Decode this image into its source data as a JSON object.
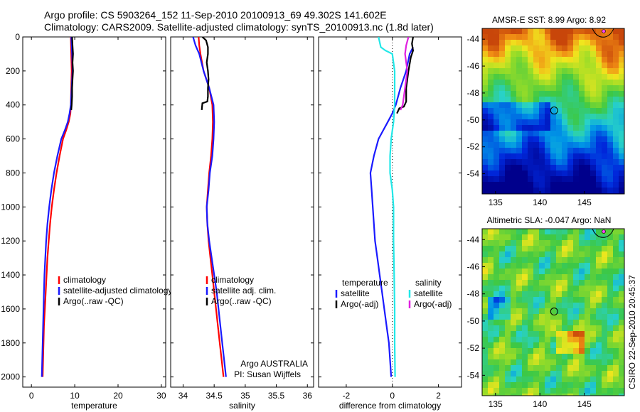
{
  "header": {
    "line1": "Argo profile: CS 5903264_152 11-Sep-2010 20100913_69 49.302S 141.602E",
    "line2": "Climatology: CARS2009. Satellite-adjusted climatology: synTS_20100913.nc (1.8d later)"
  },
  "footer_stamp": "CSIRO 22-Sep-2010 20:45:37",
  "colors": {
    "climatology": "#ff0000",
    "satellite": "#1a1aff",
    "argo": "#000000",
    "sat_salinity": "#22e8e8",
    "argo_salinity_adj": "#e020e0"
  },
  "chart_data": [
    {
      "type": "line",
      "xlabel": "temperature",
      "ylabel": "",
      "xlim": [
        -2,
        31
      ],
      "ylim": [
        2060,
        0
      ],
      "xticks": [
        0,
        10,
        20,
        30
      ],
      "yticks": [
        0,
        200,
        400,
        600,
        800,
        1000,
        1200,
        1400,
        1600,
        1800,
        2000
      ],
      "legend": [
        "climatology",
        "satellite-adjusted climatology",
        "Argo(..raw -QC)"
      ],
      "series": [
        {
          "name": "climatology",
          "color": "#ff0000",
          "points": [
            [
              9.1,
              0
            ],
            [
              9.2,
              100
            ],
            [
              9.3,
              200
            ],
            [
              9.2,
              300
            ],
            [
              9.1,
              400
            ],
            [
              9.0,
              450
            ],
            [
              8.6,
              500
            ],
            [
              8.0,
              550
            ],
            [
              7.3,
              600
            ],
            [
              6.5,
              700
            ],
            [
              5.8,
              800
            ],
            [
              5.2,
              900
            ],
            [
              4.7,
              1000
            ],
            [
              4.3,
              1100
            ],
            [
              4.0,
              1200
            ],
            [
              3.7,
              1300
            ],
            [
              3.5,
              1400
            ],
            [
              3.3,
              1500
            ],
            [
              3.1,
              1600
            ],
            [
              2.9,
              1700
            ],
            [
              2.8,
              1800
            ],
            [
              2.7,
              1900
            ],
            [
              2.6,
              2000
            ]
          ]
        },
        {
          "name": "satellite-adjusted climatology",
          "color": "#1a1aff",
          "points": [
            [
              9.2,
              0
            ],
            [
              9.4,
              100
            ],
            [
              9.5,
              200
            ],
            [
              9.3,
              300
            ],
            [
              9.1,
              400
            ],
            [
              8.8,
              450
            ],
            [
              8.4,
              500
            ],
            [
              7.7,
              550
            ],
            [
              6.9,
              600
            ],
            [
              6.0,
              700
            ],
            [
              5.2,
              800
            ],
            [
              4.6,
              900
            ],
            [
              4.1,
              1000
            ],
            [
              3.7,
              1100
            ],
            [
              3.4,
              1200
            ],
            [
              3.2,
              1300
            ],
            [
              3.0,
              1400
            ],
            [
              2.9,
              1500
            ],
            [
              2.8,
              1600
            ],
            [
              2.7,
              1700
            ],
            [
              2.6,
              1800
            ],
            [
              2.5,
              1900
            ],
            [
              2.4,
              2000
            ]
          ]
        },
        {
          "name": "Argo(..raw -QC)",
          "color": "#000000",
          "points": [
            [
              9.4,
              0
            ],
            [
              9.5,
              50
            ],
            [
              9.6,
              100
            ],
            [
              9.5,
              150
            ],
            [
              9.6,
              200
            ],
            [
              9.5,
              250
            ],
            [
              9.4,
              300
            ],
            [
              9.4,
              350
            ],
            [
              9.3,
              400
            ],
            [
              9.2,
              430
            ]
          ]
        }
      ]
    },
    {
      "type": "line",
      "xlabel": "salinity",
      "ylabel": "",
      "xlim": [
        33.8,
        36.1
      ],
      "ylim": [
        2060,
        0
      ],
      "xticks": [
        34,
        34.5,
        35,
        35.5,
        36
      ],
      "yticks": [],
      "legend": [
        "climatology",
        "satellite adj. clim.",
        "Argo(..raw -QC)"
      ],
      "series": [
        {
          "name": "climatology",
          "color": "#ff0000",
          "points": [
            [
              34.25,
              0
            ],
            [
              34.26,
              50
            ],
            [
              34.28,
              100
            ],
            [
              34.33,
              200
            ],
            [
              34.42,
              300
            ],
            [
              34.47,
              400
            ],
            [
              34.48,
              500
            ],
            [
              34.47,
              600
            ],
            [
              34.45,
              700
            ],
            [
              34.42,
              800
            ],
            [
              34.4,
              900
            ],
            [
              34.38,
              1000
            ],
            [
              34.39,
              1100
            ],
            [
              34.41,
              1200
            ],
            [
              34.44,
              1300
            ],
            [
              34.47,
              1400
            ],
            [
              34.5,
              1500
            ],
            [
              34.53,
              1600
            ],
            [
              34.56,
              1700
            ],
            [
              34.59,
              1800
            ],
            [
              34.62,
              1900
            ],
            [
              34.65,
              2000
            ]
          ]
        },
        {
          "name": "satellite adj. clim.",
          "color": "#1a1aff",
          "points": [
            [
              34.16,
              0
            ],
            [
              34.2,
              50
            ],
            [
              34.26,
              100
            ],
            [
              34.33,
              200
            ],
            [
              34.42,
              300
            ],
            [
              34.49,
              400
            ],
            [
              34.5,
              500
            ],
            [
              34.49,
              600
            ],
            [
              34.47,
              700
            ],
            [
              34.43,
              800
            ],
            [
              34.41,
              900
            ],
            [
              34.38,
              1000
            ],
            [
              34.39,
              1100
            ],
            [
              34.42,
              1200
            ],
            [
              34.46,
              1300
            ],
            [
              34.5,
              1400
            ],
            [
              34.54,
              1500
            ],
            [
              34.57,
              1600
            ],
            [
              34.6,
              1700
            ],
            [
              34.63,
              1800
            ],
            [
              34.66,
              1900
            ],
            [
              34.69,
              2000
            ]
          ]
        },
        {
          "name": "Argo(..raw -QC)",
          "color": "#000000",
          "points": [
            [
              34.31,
              0
            ],
            [
              34.37,
              20
            ],
            [
              34.4,
              60
            ],
            [
              34.4,
              100
            ],
            [
              34.38,
              150
            ],
            [
              34.4,
              200
            ],
            [
              34.41,
              250
            ],
            [
              34.4,
              300
            ],
            [
              34.4,
              350
            ],
            [
              34.39,
              380
            ],
            [
              34.31,
              390
            ],
            [
              34.3,
              430
            ]
          ]
        }
      ],
      "annotation": [
        "Argo AUSTRALIA",
        "PI: Susan Wijffels"
      ]
    },
    {
      "type": "line",
      "xlabel": "difference from climatology",
      "ylabel": "",
      "xlim": [
        -3.2,
        3.0
      ],
      "ylim": [
        2060,
        0
      ],
      "xticks": [
        -2,
        0,
        2
      ],
      "yticks": [],
      "legend_groups": [
        {
          "title": "temperature",
          "entries": [
            "satellite",
            "Argo(-adj)"
          ]
        },
        {
          "title": "salinity",
          "entries": [
            "satellite",
            "Argo(-adj)"
          ]
        }
      ],
      "series": [
        {
          "name": "temperature satellite",
          "color": "#1a1aff",
          "points": [
            [
              0.9,
              60
            ],
            [
              0.75,
              100
            ],
            [
              0.6,
              200
            ],
            [
              0.35,
              300
            ],
            [
              0.15,
              400
            ],
            [
              0.0,
              450
            ],
            [
              -0.2,
              500
            ],
            [
              -0.4,
              550
            ],
            [
              -0.6,
              600
            ],
            [
              -0.8,
              700
            ],
            [
              -0.95,
              800
            ],
            [
              -0.9,
              900
            ],
            [
              -0.85,
              1000
            ],
            [
              -0.8,
              1100
            ],
            [
              -0.75,
              1200
            ],
            [
              -0.65,
              1300
            ],
            [
              -0.55,
              1400
            ],
            [
              -0.45,
              1500
            ],
            [
              -0.35,
              1600
            ],
            [
              -0.25,
              1700
            ],
            [
              -0.15,
              1800
            ],
            [
              -0.1,
              1900
            ],
            [
              -0.05,
              2000
            ]
          ]
        },
        {
          "name": "temperature Argo(-adj)",
          "color": "#000000",
          "points": [
            [
              0.2,
              450
            ],
            [
              0.3,
              420
            ],
            [
              0.5,
              410
            ],
            [
              0.6,
              380
            ],
            [
              0.6,
              300
            ],
            [
              0.7,
              200
            ],
            [
              0.8,
              120
            ],
            [
              0.9,
              80
            ],
            [
              0.85,
              40
            ],
            [
              0.9,
              0
            ]
          ]
        },
        {
          "name": "salinity satellite",
          "color": "#22e8e8",
          "points": [
            [
              -0.6,
              0
            ],
            [
              -0.5,
              60
            ],
            [
              -0.3,
              80
            ],
            [
              0.0,
              100
            ],
            [
              0.1,
              200
            ],
            [
              0.1,
              300
            ],
            [
              0.1,
              400
            ],
            [
              0.05,
              500
            ],
            [
              -0.05,
              600
            ],
            [
              -0.1,
              700
            ],
            [
              -0.1,
              800
            ],
            [
              0.0,
              900
            ],
            [
              0.05,
              1000
            ],
            [
              0.05,
              1200
            ],
            [
              0.08,
              1400
            ],
            [
              0.1,
              1600
            ],
            [
              0.1,
              1800
            ],
            [
              0.12,
              2000
            ]
          ]
        },
        {
          "name": "salinity Argo(-adj)",
          "color": "#e020e0",
          "points": [
            [
              0.7,
              0
            ],
            [
              0.6,
              50
            ],
            [
              0.55,
              100
            ],
            [
              0.65,
              200
            ],
            [
              0.55,
              300
            ],
            [
              0.45,
              400
            ],
            [
              0.35,
              430
            ]
          ]
        }
      ]
    },
    {
      "type": "heatmap",
      "title": "AMSR-E SST: 8.99 Argo: 8.92",
      "xticks": [
        135,
        140,
        145
      ],
      "yticks": [
        -44,
        -46,
        -48,
        -50,
        -52,
        -54
      ],
      "xlim": [
        133.5,
        149.5
      ],
      "ylim": [
        -55.5,
        -43.2
      ],
      "marker": {
        "lon": 141.6,
        "lat": -49.3
      }
    },
    {
      "type": "heatmap",
      "title": "Altimetric SLA: -0.047 Argo: NaN",
      "xticks": [
        135,
        140,
        145
      ],
      "yticks": [
        -44,
        -46,
        -48,
        -50,
        -52,
        -54
      ],
      "xlim": [
        133.5,
        149.5
      ],
      "ylim": [
        -55.5,
        -43.2
      ],
      "marker": {
        "lon": 141.6,
        "lat": -49.3
      }
    }
  ]
}
